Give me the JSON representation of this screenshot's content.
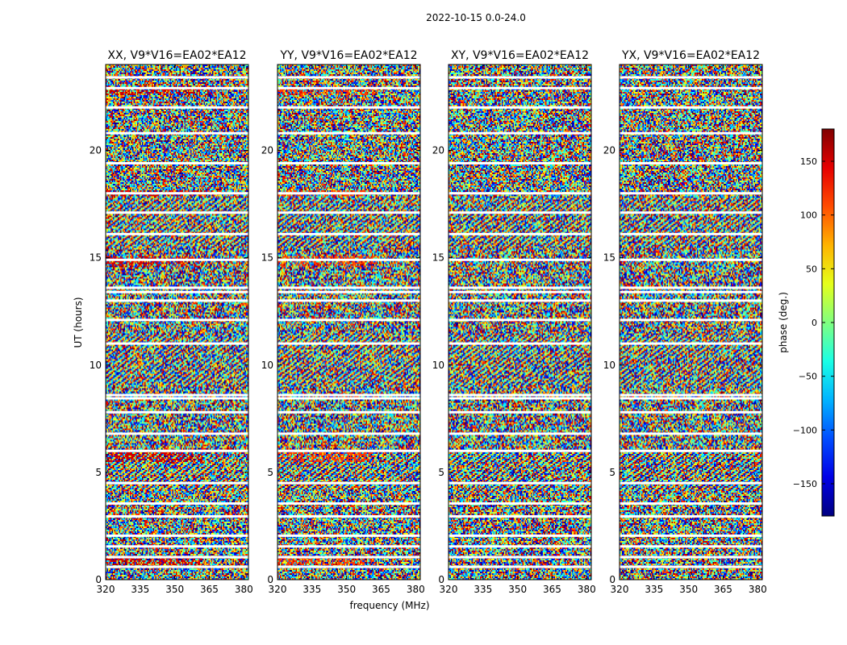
{
  "figure_title": "2022-10-15 0.0-24.0",
  "chart_data": {
    "type": "heatmap",
    "title": "2022-10-15 0.0-24.0",
    "xlabel": "frequency (MHz)",
    "ylabel": "UT (hours)",
    "xlim": [
      320,
      382
    ],
    "ylim": [
      0,
      24
    ],
    "xticks": [
      320,
      335,
      350,
      365,
      380
    ],
    "yticks": [
      0,
      5,
      10,
      15,
      20
    ],
    "panels": [
      {
        "title": "XX, V9*V16=EA02*EA12"
      },
      {
        "title": "YY, V9*V16=EA02*EA12"
      },
      {
        "title": "XY, V9*V16=EA02*EA12"
      },
      {
        "title": "YX, V9*V16=EA02*EA12"
      }
    ],
    "colorbar": {
      "label": "phase (deg.)",
      "range": [
        -180,
        180
      ],
      "ticks": [
        -150,
        -100,
        -50,
        0,
        50,
        100,
        150
      ],
      "colormap": "jet"
    },
    "gap_hours": [
      0.6,
      1.05,
      1.55,
      2.05,
      2.95,
      3.55,
      4.5,
      6.0,
      6.8,
      7.8,
      8.45,
      8.6,
      11.0,
      12.1,
      13.0,
      13.4,
      13.6,
      14.9,
      16.1,
      17.1,
      18.0,
      19.4,
      20.8,
      22.0,
      22.9,
      23.4
    ]
  }
}
